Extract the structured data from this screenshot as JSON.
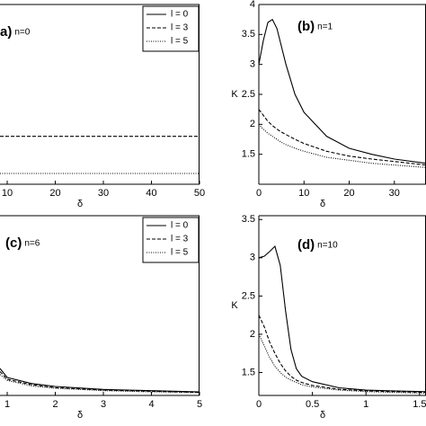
{
  "chart_data": [
    {
      "type": "line",
      "label": "a)",
      "subtitle": "n=0",
      "xlabel": "δ",
      "legend": "upper right",
      "xlim": [
        8.5,
        50
      ],
      "ylim": [
        1,
        4
      ],
      "xticks": [
        10,
        20,
        30,
        40,
        50
      ],
      "yticks": [],
      "x": [
        8.5,
        50
      ],
      "series": [
        {
          "name": "l = 0",
          "color": "#000000",
          "dash": "solid",
          "values": [
            null,
            null
          ]
        },
        {
          "name": "l = 3",
          "color": "#000000",
          "dash": "dashed",
          "values": [
            1.8,
            1.8
          ]
        },
        {
          "name": "l = 5",
          "color": "#000000",
          "dash": "dotted",
          "values": [
            1.18,
            1.18
          ]
        }
      ]
    },
    {
      "type": "line",
      "label": "(b)",
      "subtitle": "n=1",
      "xlabel": "δ",
      "ylabel": "K",
      "legend": "none",
      "xlim": [
        0,
        37
      ],
      "ylim": [
        1,
        4
      ],
      "xticks": [
        0,
        10,
        20,
        30
      ],
      "yticks": [
        1.5,
        2,
        2.5,
        3,
        3.5,
        4
      ],
      "x": [
        0,
        1,
        2,
        3,
        4,
        5,
        6,
        8,
        10,
        15,
        20,
        25,
        30,
        37
      ],
      "series": [
        {
          "name": "l = 0",
          "color": "#000000",
          "dash": "solid",
          "values": [
            3.0,
            3.4,
            3.7,
            3.75,
            3.6,
            3.3,
            3.0,
            2.5,
            2.2,
            1.8,
            1.6,
            1.5,
            1.42,
            1.35
          ]
        },
        {
          "name": "l = 3",
          "color": "#000000",
          "dash": "dashed",
          "values": [
            2.25,
            2.15,
            2.05,
            1.98,
            1.92,
            1.87,
            1.83,
            1.75,
            1.68,
            1.55,
            1.47,
            1.42,
            1.38,
            1.32
          ]
        },
        {
          "name": "l = 5",
          "color": "#000000",
          "dash": "dotted",
          "values": [
            2.0,
            1.92,
            1.85,
            1.8,
            1.75,
            1.7,
            1.66,
            1.6,
            1.55,
            1.45,
            1.4,
            1.35,
            1.32,
            1.28
          ]
        }
      ]
    },
    {
      "type": "line",
      "label": "(c)",
      "subtitle": "n=6",
      "xlabel": "δ",
      "legend": "upper right",
      "xlim": [
        0.85,
        5
      ],
      "ylim": [
        1,
        4
      ],
      "xticks": [
        1,
        2,
        3,
        4,
        5
      ],
      "yticks": [],
      "x": [
        0.85,
        1,
        1.5,
        2,
        3,
        4,
        5
      ],
      "series": [
        {
          "name": "l = 0",
          "color": "#000000",
          "dash": "solid",
          "values": [
            1.45,
            1.3,
            1.2,
            1.15,
            1.1,
            1.08,
            1.06
          ]
        },
        {
          "name": "l = 3",
          "color": "#000000",
          "dash": "dashed",
          "values": [
            1.4,
            1.27,
            1.18,
            1.13,
            1.09,
            1.07,
            1.05
          ]
        },
        {
          "name": "l = 5",
          "color": "#000000",
          "dash": "dotted",
          "values": [
            1.35,
            1.25,
            1.16,
            1.12,
            1.08,
            1.06,
            1.05
          ]
        }
      ]
    },
    {
      "type": "line",
      "label": "(d)",
      "subtitle": "n=10",
      "xlabel": "δ",
      "ylabel": "K",
      "legend": "none",
      "xlim": [
        0,
        1.56
      ],
      "ylim": [
        1.2,
        3.55
      ],
      "xticks": [
        0,
        0.5,
        1,
        1.5
      ],
      "yticks": [
        1.5,
        2,
        2.5,
        3,
        3.5
      ],
      "x": [
        0,
        0.05,
        0.1,
        0.15,
        0.2,
        0.25,
        0.3,
        0.35,
        0.4,
        0.5,
        0.75,
        1,
        1.25,
        1.56
      ],
      "series": [
        {
          "name": "l = 0",
          "color": "#000000",
          "dash": "solid",
          "values": [
            3.0,
            3.02,
            3.08,
            3.15,
            2.9,
            2.3,
            1.8,
            1.55,
            1.45,
            1.38,
            1.3,
            1.27,
            1.26,
            1.25
          ]
        },
        {
          "name": "l = 3",
          "color": "#000000",
          "dash": "dashed",
          "values": [
            2.25,
            2.1,
            1.9,
            1.75,
            1.62,
            1.52,
            1.45,
            1.4,
            1.37,
            1.33,
            1.28,
            1.26,
            1.25,
            1.24
          ]
        },
        {
          "name": "l = 5",
          "color": "#000000",
          "dash": "dotted",
          "values": [
            2.0,
            1.85,
            1.7,
            1.58,
            1.5,
            1.44,
            1.4,
            1.37,
            1.34,
            1.31,
            1.27,
            1.25,
            1.24,
            1.23
          ]
        }
      ]
    }
  ]
}
